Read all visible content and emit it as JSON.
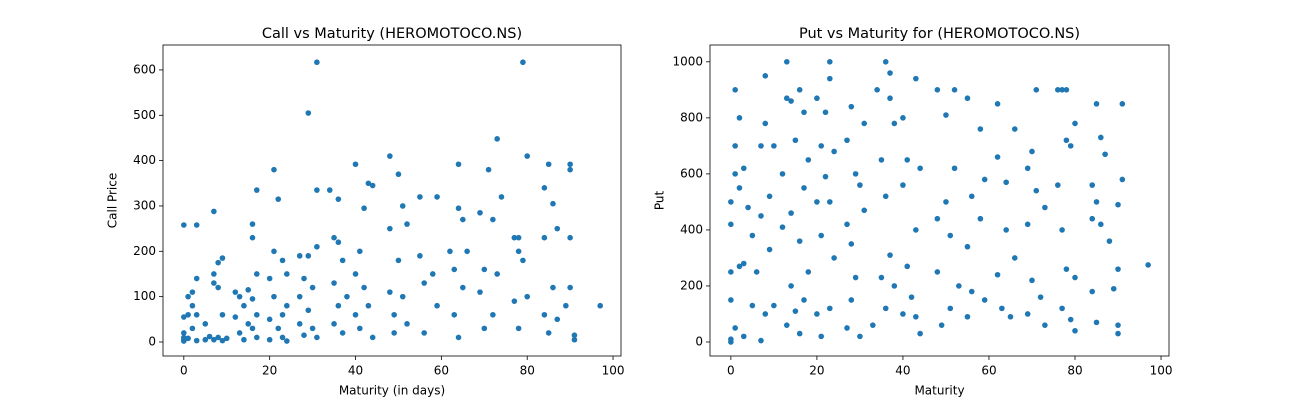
{
  "chart_data": [
    {
      "type": "scatter",
      "title": "Call vs Maturity  (HEROMOTOCO.NS)",
      "x_label": "Maturity (in days)",
      "y_label": "Call Price",
      "color": "#1f77b4",
      "xlim": [
        -4.85,
        101.85
      ],
      "ylim": [
        -30.9,
        655
      ],
      "xticks": [
        0,
        20,
        40,
        60,
        80,
        100
      ],
      "yticks": [
        0,
        100,
        200,
        300,
        400,
        500,
        600
      ],
      "x": [
        0,
        0,
        0,
        0,
        0,
        0,
        1,
        1,
        1,
        2,
        2,
        2,
        3,
        3,
        3,
        3,
        5,
        5,
        6,
        7,
        7,
        7,
        7,
        8,
        8,
        8,
        9,
        9,
        9,
        10,
        12,
        12,
        13,
        13,
        14,
        14,
        15,
        15,
        16,
        16,
        16,
        16,
        17,
        17,
        17,
        17,
        20,
        20,
        20,
        21,
        21,
        21,
        22,
        22,
        23,
        23,
        23,
        24,
        24,
        24,
        27,
        27,
        27,
        28,
        28,
        29,
        29,
        29,
        30,
        30,
        31,
        31,
        31,
        31,
        34,
        35,
        35,
        35,
        36,
        36,
        36,
        37,
        37,
        38,
        40,
        40,
        40,
        41,
        41,
        42,
        42,
        43,
        43,
        44,
        44,
        48,
        48,
        48,
        49,
        49,
        50,
        50,
        51,
        51,
        52,
        52,
        55,
        55,
        56,
        56,
        58,
        59,
        59,
        62,
        63,
        63,
        64,
        64,
        64,
        65,
        65,
        66,
        69,
        69,
        70,
        70,
        71,
        72,
        72,
        73,
        73,
        74,
        77,
        77,
        78,
        78,
        78,
        79,
        79,
        80,
        80,
        84,
        84,
        84,
        85,
        85,
        86,
        86,
        87,
        87,
        89,
        90,
        90,
        90,
        90,
        91,
        91,
        97
      ],
      "values": [
        2,
        5,
        10,
        20,
        55,
        258,
        60,
        100,
        8,
        80,
        110,
        30,
        140,
        60,
        258,
        3,
        5,
        40,
        12,
        288,
        150,
        130,
        5,
        175,
        120,
        10,
        185,
        60,
        3,
        8,
        110,
        55,
        100,
        20,
        80,
        5,
        115,
        40,
        260,
        230,
        95,
        30,
        335,
        150,
        60,
        10,
        140,
        50,
        5,
        380,
        200,
        100,
        315,
        30,
        180,
        60,
        10,
        150,
        80,
        2,
        190,
        100,
        40,
        140,
        15,
        505,
        190,
        70,
        120,
        30,
        617,
        335,
        210,
        10,
        335,
        230,
        130,
        40,
        315,
        220,
        80,
        180,
        20,
        100,
        392,
        150,
        60,
        200,
        30,
        295,
        120,
        350,
        80,
        345,
        10,
        410,
        250,
        110,
        60,
        20,
        370,
        180,
        300,
        100,
        260,
        40,
        320,
        190,
        130,
        20,
        150,
        320,
        80,
        200,
        160,
        60,
        392,
        295,
        10,
        270,
        120,
        200,
        285,
        110,
        160,
        30,
        380,
        270,
        60,
        448,
        150,
        320,
        230,
        90,
        230,
        200,
        30,
        617,
        180,
        410,
        100,
        340,
        230,
        60,
        392,
        20,
        305,
        120,
        250,
        50,
        80,
        392,
        380,
        230,
        120,
        15,
        5,
        80
      ]
    },
    {
      "type": "scatter",
      "title": "Put vs Maturity for (HEROMOTOCO.NS)",
      "x_label": "Maturity",
      "y_label": "Put",
      "color": "#1f77b4",
      "xlim": [
        -4.85,
        101.85
      ],
      "ylim": [
        -50,
        1060
      ],
      "xticks": [
        0,
        20,
        40,
        60,
        80,
        100
      ],
      "yticks": [
        0,
        200,
        400,
        600,
        800,
        1000
      ],
      "x": [
        0,
        0,
        0,
        0,
        0,
        0,
        1,
        1,
        1,
        1,
        2,
        2,
        2,
        3,
        3,
        3,
        4,
        5,
        5,
        6,
        7,
        7,
        7,
        8,
        8,
        8,
        9,
        9,
        10,
        10,
        12,
        12,
        13,
        13,
        13,
        14,
        14,
        14,
        15,
        15,
        16,
        16,
        16,
        17,
        17,
        17,
        18,
        18,
        20,
        20,
        20,
        21,
        21,
        21,
        22,
        22,
        23,
        23,
        23,
        23,
        24,
        24,
        27,
        27,
        27,
        28,
        28,
        28,
        29,
        29,
        30,
        30,
        31,
        31,
        33,
        34,
        35,
        35,
        36,
        36,
        36,
        37,
        37,
        37,
        38,
        38,
        40,
        40,
        40,
        41,
        41,
        42,
        43,
        43,
        43,
        44,
        44,
        48,
        48,
        48,
        49,
        50,
        50,
        51,
        51,
        52,
        52,
        53,
        55,
        55,
        55,
        56,
        56,
        58,
        58,
        59,
        59,
        62,
        62,
        62,
        63,
        64,
        64,
        65,
        66,
        66,
        69,
        69,
        69,
        70,
        70,
        71,
        71,
        72,
        73,
        73,
        76,
        76,
        77,
        77,
        77,
        78,
        78,
        78,
        79,
        79,
        80,
        80,
        80,
        84,
        84,
        84,
        85,
        85,
        85,
        86,
        86,
        87,
        88,
        89,
        90,
        90,
        90,
        90,
        91,
        91,
        97
      ],
      "values": [
        0,
        10,
        150,
        250,
        420,
        500,
        900,
        600,
        700,
        50,
        270,
        550,
        800,
        20,
        280,
        620,
        480,
        130,
        380,
        250,
        700,
        450,
        5,
        950,
        780,
        100,
        520,
        330,
        700,
        130,
        410,
        600,
        1000,
        870,
        60,
        860,
        460,
        200,
        720,
        110,
        900,
        360,
        30,
        820,
        550,
        150,
        650,
        250,
        870,
        500,
        100,
        700,
        380,
        20,
        820,
        590,
        1000,
        940,
        500,
        120,
        680,
        300,
        720,
        420,
        50,
        840,
        350,
        150,
        600,
        230,
        560,
        20,
        780,
        470,
        60,
        900,
        650,
        230,
        1000,
        520,
        120,
        960,
        870,
        310,
        780,
        200,
        800,
        560,
        100,
        650,
        270,
        160,
        940,
        400,
        90,
        620,
        30,
        900,
        440,
        250,
        60,
        810,
        500,
        380,
        120,
        900,
        620,
        200,
        870,
        340,
        90,
        520,
        180,
        760,
        440,
        580,
        150,
        850,
        660,
        240,
        120,
        570,
        400,
        90,
        760,
        300,
        620,
        420,
        100,
        680,
        220,
        900,
        540,
        160,
        480,
        60,
        900,
        560,
        900,
        400,
        120,
        900,
        720,
        260,
        700,
        80,
        780,
        230,
        40,
        560,
        440,
        180,
        850,
        500,
        70,
        730,
        420,
        670,
        360,
        190,
        490,
        260,
        60,
        30,
        850,
        580,
        275
      ]
    }
  ]
}
